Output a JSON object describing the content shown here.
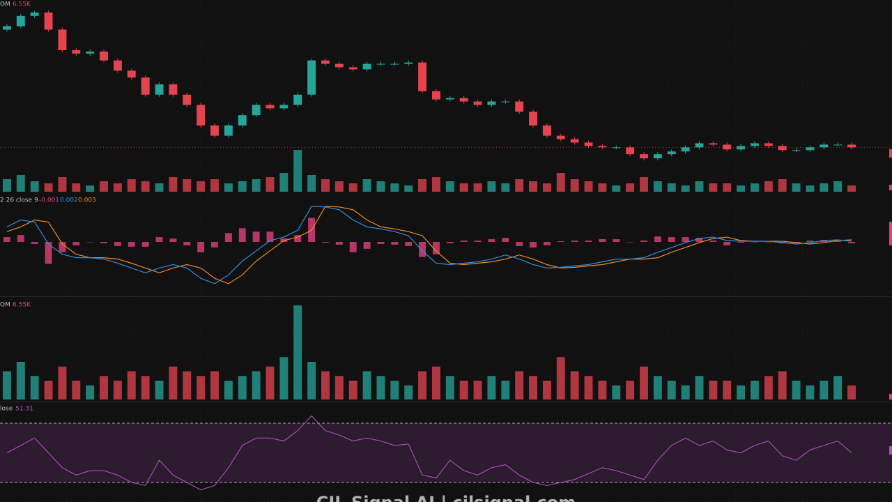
{
  "chart_data": [
    {
      "type": "candlestick",
      "label": "OM",
      "readout": "6.55K",
      "up_color": "#26a69a",
      "down_color": "#e5434f",
      "candles": [
        [
          200,
          208,
          197,
          205
        ],
        [
          205,
          223,
          202,
          220
        ],
        [
          220,
          228,
          217,
          225
        ],
        [
          225,
          228,
          197,
          200
        ],
        [
          200,
          203,
          167,
          170
        ],
        [
          170,
          173,
          162,
          165
        ],
        [
          165,
          171,
          162,
          168
        ],
        [
          168,
          171,
          152,
          155
        ],
        [
          155,
          158,
          137,
          140
        ],
        [
          140,
          143,
          127,
          130
        ],
        [
          130,
          133,
          102,
          105
        ],
        [
          105,
          123,
          102,
          120
        ],
        [
          120,
          123,
          102,
          105
        ],
        [
          105,
          108,
          87,
          90
        ],
        [
          90,
          93,
          57,
          60
        ],
        [
          60,
          63,
          42,
          45
        ],
        [
          45,
          63,
          42,
          60
        ],
        [
          60,
          78,
          57,
          75
        ],
        [
          75,
          93,
          72,
          90
        ],
        [
          90,
          93,
          82,
          85
        ],
        [
          85,
          93,
          82,
          90
        ],
        [
          90,
          108,
          87,
          105
        ],
        [
          105,
          158,
          102,
          155
        ],
        [
          155,
          158,
          147,
          150
        ],
        [
          150,
          153,
          142,
          145
        ],
        [
          145,
          148,
          139,
          142
        ],
        [
          142,
          153,
          139,
          150
        ],
        [
          150,
          153,
          147,
          150
        ],
        [
          150,
          153,
          147,
          150
        ],
        [
          150,
          155,
          147,
          152
        ],
        [
          152,
          155,
          107,
          110
        ],
        [
          110,
          113,
          95,
          98
        ],
        [
          98,
          103,
          95,
          100
        ],
        [
          100,
          103,
          92,
          95
        ],
        [
          95,
          98,
          87,
          90
        ],
        [
          90,
          98,
          87,
          95
        ],
        [
          95,
          98,
          92,
          95
        ],
        [
          95,
          98,
          77,
          80
        ],
        [
          80,
          83,
          57,
          60
        ],
        [
          60,
          63,
          42,
          45
        ],
        [
          45,
          48,
          37,
          40
        ],
        [
          40,
          43,
          32,
          35
        ],
        [
          35,
          38,
          27,
          30
        ],
        [
          30,
          33,
          25,
          28
        ],
        [
          28,
          31,
          25,
          28
        ],
        [
          28,
          31,
          15,
          18
        ],
        [
          18,
          21,
          9,
          12
        ],
        [
          12,
          21,
          9,
          18
        ],
        [
          18,
          25,
          15,
          22
        ],
        [
          22,
          31,
          19,
          28
        ],
        [
          28,
          37,
          25,
          34
        ],
        [
          34,
          37,
          29,
          32
        ],
        [
          32,
          35,
          22,
          25
        ],
        [
          25,
          33,
          22,
          30
        ],
        [
          30,
          37,
          27,
          34
        ],
        [
          34,
          37,
          27,
          30
        ],
        [
          30,
          33,
          21,
          24
        ],
        [
          24,
          27,
          21,
          24
        ],
        [
          24,
          31,
          21,
          28
        ],
        [
          28,
          35,
          25,
          32
        ],
        [
          32,
          35,
          29,
          32
        ],
        [
          32,
          35,
          25,
          28
        ]
      ],
      "volume": [
        30,
        40,
        25,
        20,
        35,
        20,
        15,
        25,
        20,
        30,
        25,
        20,
        35,
        30,
        25,
        30,
        20,
        25,
        30,
        35,
        45,
        100,
        40,
        30,
        25,
        20,
        30,
        25,
        20,
        15,
        30,
        35,
        25,
        20,
        20,
        25,
        20,
        30,
        25,
        20,
        45,
        30,
        25,
        20,
        15,
        20,
        35,
        25,
        20,
        15,
        25,
        20,
        20,
        15,
        20,
        25,
        30,
        20,
        15,
        20,
        25,
        15
      ]
    },
    {
      "type": "macd",
      "label": "2 26 close 9",
      "readouts": [
        -0.001,
        0.002,
        0.003
      ],
      "histogram_color": "#e0407a",
      "macd_color": "#2f8fdf",
      "signal_color": "#f08a24",
      "macd": [
        0.022,
        0.032,
        0.029,
        -0.003,
        -0.018,
        -0.023,
        -0.023,
        -0.025,
        -0.031,
        -0.038,
        -0.045,
        -0.038,
        -0.033,
        -0.038,
        -0.053,
        -0.061,
        -0.048,
        -0.028,
        -0.013,
        0.002,
        0.007,
        0.017,
        0.052,
        0.051,
        0.047,
        0.032,
        0.022,
        0.019,
        0.015,
        0.009,
        -0.013,
        -0.031,
        -0.033,
        -0.031,
        -0.029,
        -0.025,
        -0.019,
        -0.025,
        -0.033,
        -0.038,
        -0.037,
        -0.035,
        -0.033,
        -0.029,
        -0.025,
        -0.025,
        -0.023,
        -0.015,
        -0.008,
        -0.001,
        0.005,
        0.007,
        0.002,
        0.001,
        0.001,
        0.001,
        -0.001,
        -0.003,
        -0.001,
        0.002,
        0.003,
        0.001
      ],
      "signal": [
        0.015,
        0.022,
        0.032,
        0.029,
        -0.003,
        -0.018,
        -0.023,
        -0.023,
        -0.025,
        -0.031,
        -0.038,
        -0.045,
        -0.038,
        -0.033,
        -0.038,
        -0.053,
        -0.061,
        -0.048,
        -0.028,
        -0.013,
        0.002,
        0.007,
        0.017,
        0.052,
        0.051,
        0.047,
        0.032,
        0.022,
        0.019,
        0.015,
        0.009,
        -0.013,
        -0.031,
        -0.033,
        -0.031,
        -0.029,
        -0.025,
        -0.019,
        -0.025,
        -0.033,
        -0.038,
        -0.037,
        -0.035,
        -0.033,
        -0.029,
        -0.025,
        -0.025,
        -0.023,
        -0.015,
        -0.008,
        -0.001,
        0.005,
        0.007,
        0.002,
        0.001,
        0.001,
        0.001,
        -0.001,
        -0.003,
        -0.001,
        0.002,
        0.003
      ],
      "histogram": [
        0.007,
        0.01,
        -0.003,
        -0.032,
        -0.015,
        -0.005,
        0,
        -0.002,
        -0.006,
        -0.007,
        -0.007,
        0.007,
        0.005,
        -0.005,
        -0.015,
        -0.008,
        0.013,
        0.02,
        0.015,
        0.015,
        0.005,
        0.01,
        0.035,
        -0.001,
        -0.004,
        -0.015,
        -0.01,
        -0.003,
        -0.004,
        -0.006,
        -0.022,
        -0.018,
        -0.002,
        0.002,
        0.002,
        0.004,
        0.006,
        -0.006,
        -0.008,
        -0.005,
        0.001,
        0.002,
        0.002,
        0.004,
        0.004,
        0,
        0.002,
        0.008,
        0.007,
        0.007,
        0.006,
        0.002,
        -0.005,
        -0.001,
        0,
        0,
        -0.002,
        -0.002,
        0.002,
        0.003,
        0.001,
        -0.002
      ]
    },
    {
      "type": "volume",
      "label": "OM",
      "readout": "6.55K"
    },
    {
      "type": "rsi",
      "label": "lose",
      "readout": 51.31,
      "color": "#b04fc0",
      "levels": [
        70,
        30
      ],
      "values": [
        50,
        55,
        60,
        50,
        40,
        35,
        38,
        38,
        35,
        30,
        28,
        45,
        35,
        30,
        25,
        28,
        40,
        55,
        60,
        60,
        58,
        65,
        75,
        65,
        62,
        58,
        60,
        58,
        55,
        56,
        35,
        33,
        45,
        38,
        35,
        40,
        42,
        35,
        30,
        28,
        30,
        32,
        36,
        40,
        38,
        35,
        32,
        45,
        55,
        60,
        55,
        58,
        52,
        50,
        55,
        58,
        48,
        45,
        52,
        55,
        58,
        50
      ]
    }
  ],
  "watermark": "CIL Signal AI | cilsignal.com"
}
